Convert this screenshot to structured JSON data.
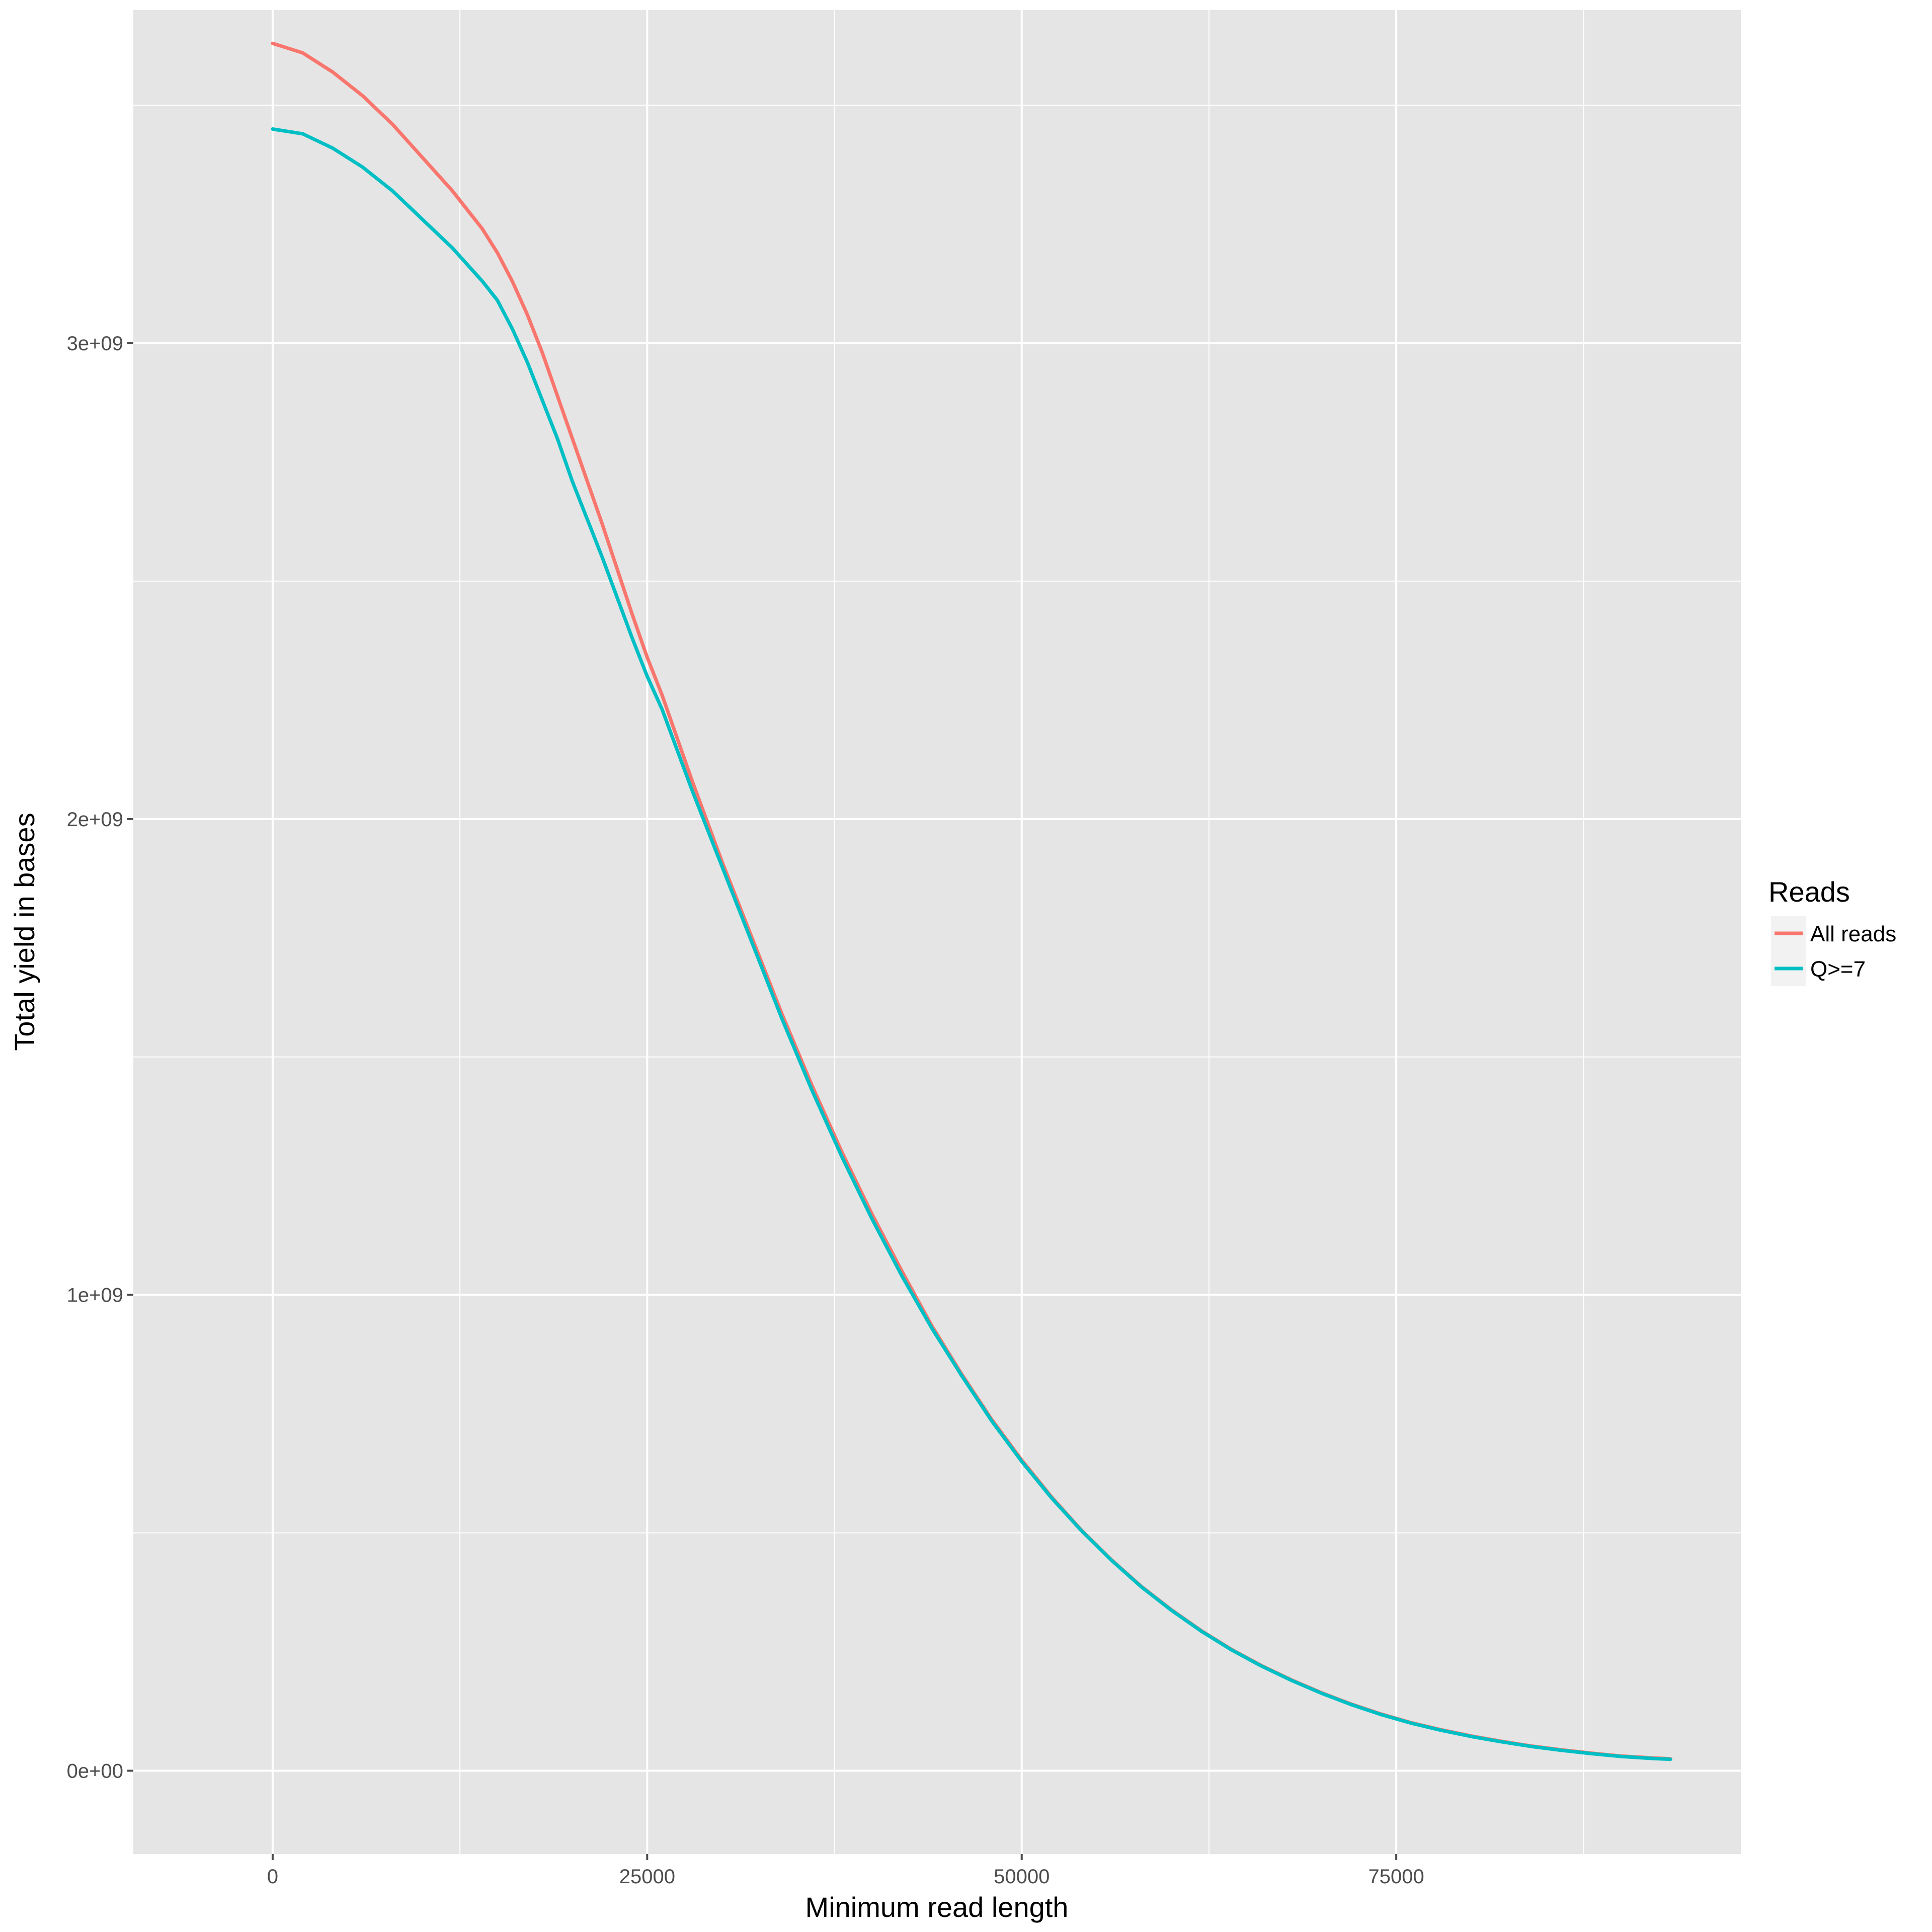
{
  "chart_data": {
    "type": "line",
    "title": "",
    "xlabel": "Minimum read length",
    "ylabel": "Total yield in bases",
    "xlim": [
      -9300,
      98000
    ],
    "ylim": [
      -175000000,
      3700000000
    ],
    "x_ticks": [
      0,
      25000,
      50000,
      75000
    ],
    "x_tick_labels": [
      "0",
      "25000",
      "50000",
      "75000"
    ],
    "y_ticks": [
      0,
      1000000000,
      2000000000,
      3000000000
    ],
    "y_tick_labels": [
      "0e+00",
      "1e+09",
      "2e+09",
      "3e+09"
    ],
    "grid": true,
    "legend": {
      "title": "Reads",
      "position": "right"
    },
    "colors": {
      "panel": "#e5e5e5",
      "grid": "#ffffff",
      "tick": "#4d4d4d"
    },
    "series": [
      {
        "name": "All reads",
        "color": "#F8766D",
        "x": [
          0,
          2000,
          4000,
          6000,
          8000,
          10000,
          12000,
          14000,
          15000,
          16000,
          17000,
          18000,
          19000,
          20000,
          22000,
          24000,
          25000,
          26000,
          28000,
          30000,
          32000,
          34000,
          36000,
          38000,
          40000,
          42000,
          44000,
          46000,
          48000,
          50000,
          52000,
          54000,
          56000,
          58000,
          60000,
          62000,
          64000,
          66000,
          68000,
          70000,
          72000,
          74000,
          76000,
          78000,
          80000,
          82000,
          84000,
          86000,
          88000,
          90000,
          92000,
          93300
        ],
        "y": [
          3630000000,
          3610000000,
          3570000000,
          3520000000,
          3460000000,
          3390000000,
          3320000000,
          3240000000,
          3190000000,
          3130000000,
          3060000000,
          2980000000,
          2890000000,
          2800000000,
          2620000000,
          2430000000,
          2340000000,
          2260000000,
          2080000000,
          1910000000,
          1750000000,
          1590000000,
          1440000000,
          1300000000,
          1170000000,
          1050000000,
          935000000,
          833000000,
          738000000,
          653000000,
          575000000,
          505000000,
          443000000,
          387000000,
          338000000,
          294000000,
          255000000,
          221000000,
          191000000,
          164000000,
          140000000,
          119000000,
          101000000,
          86000000,
          73000000,
          62000000,
          52000000,
          44000000,
          37000000,
          31000000,
          27000000,
          25000000
        ]
      },
      {
        "name": "Q>=7",
        "color": "#00BFC4",
        "x": [
          0,
          2000,
          4000,
          6000,
          8000,
          10000,
          12000,
          14000,
          15000,
          16000,
          17000,
          18000,
          19000,
          20000,
          22000,
          24000,
          25000,
          26000,
          28000,
          30000,
          32000,
          34000,
          36000,
          38000,
          40000,
          42000,
          44000,
          46000,
          48000,
          50000,
          52000,
          54000,
          56000,
          58000,
          60000,
          62000,
          64000,
          66000,
          68000,
          70000,
          72000,
          74000,
          76000,
          78000,
          80000,
          82000,
          84000,
          86000,
          88000,
          90000,
          92000,
          93300
        ],
        "y": [
          3450000000,
          3440000000,
          3410000000,
          3370000000,
          3320000000,
          3260000000,
          3200000000,
          3130000000,
          3090000000,
          3030000000,
          2960000000,
          2880000000,
          2800000000,
          2710000000,
          2550000000,
          2380000000,
          2300000000,
          2230000000,
          2060000000,
          1900000000,
          1740000000,
          1580000000,
          1430000000,
          1290000000,
          1160000000,
          1040000000,
          930000000,
          830000000,
          735000000,
          650000000,
          573000000,
          504000000,
          442000000,
          386000000,
          337000000,
          293000000,
          254000000,
          220000000,
          190000000,
          163000000,
          139000000,
          118000000,
          100000000,
          85000000,
          72000000,
          61000000,
          51000000,
          43000000,
          36000000,
          30000000,
          26000000,
          24000000
        ]
      }
    ]
  }
}
